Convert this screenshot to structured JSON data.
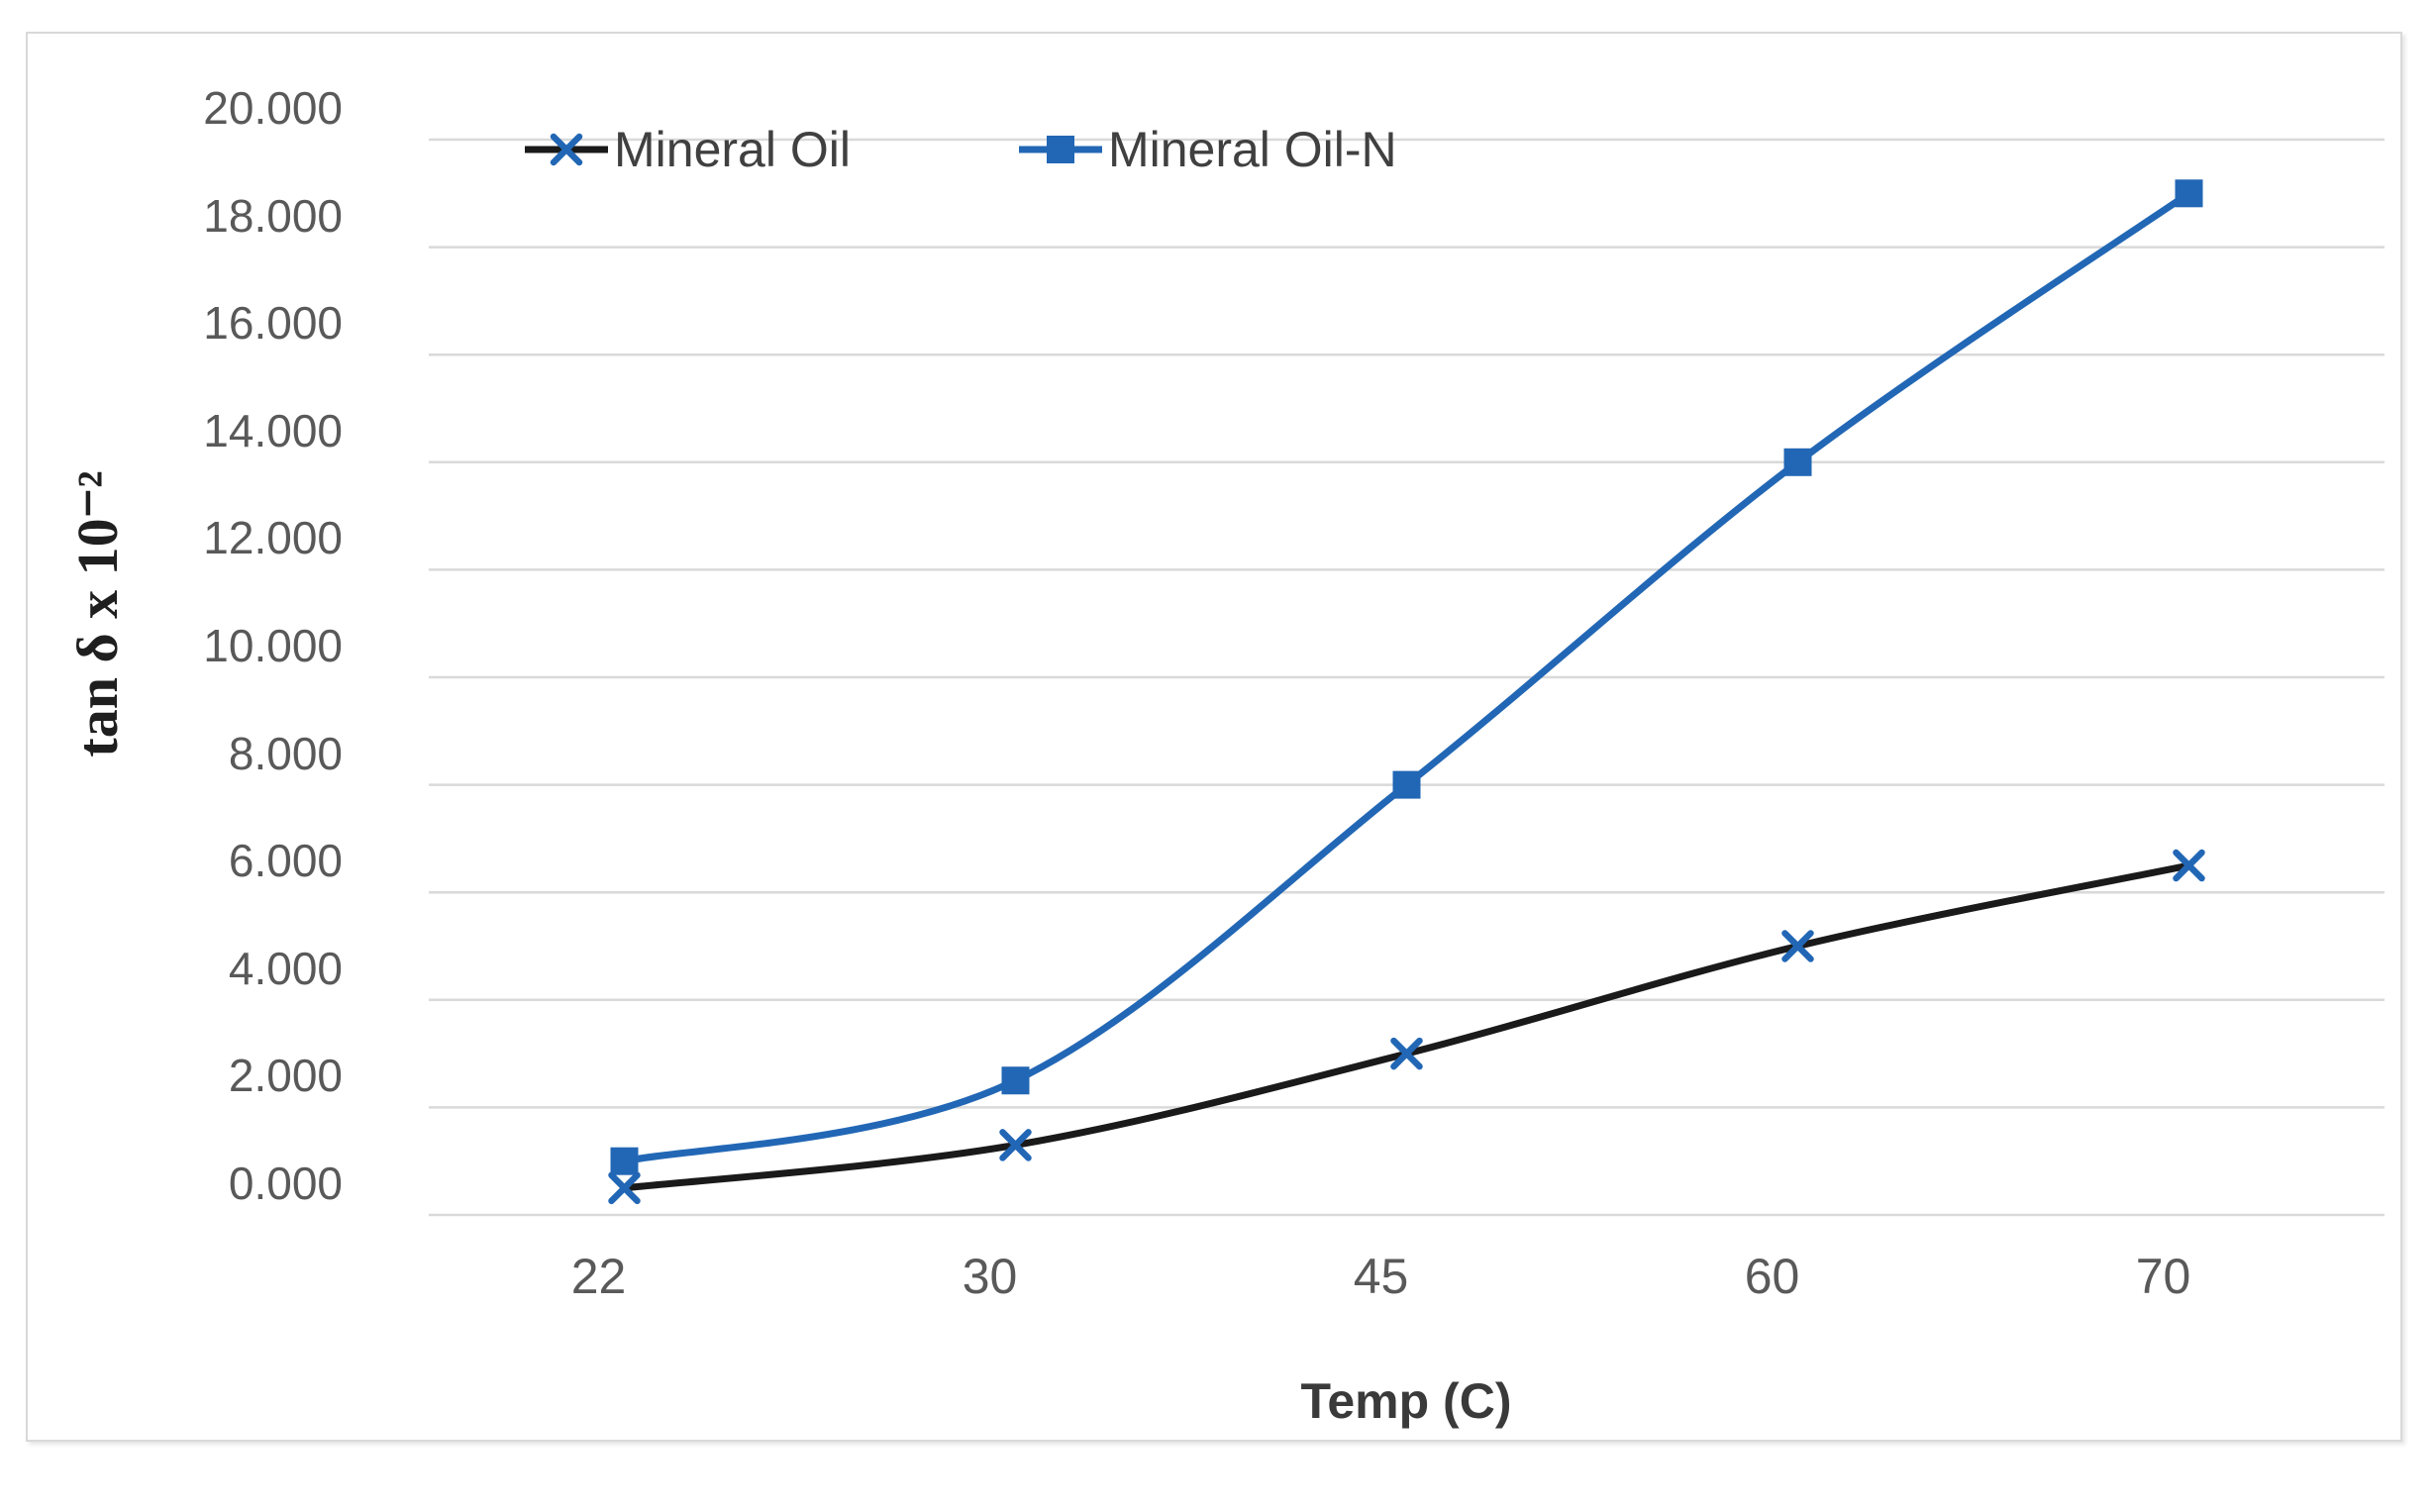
{
  "chart_data": {
    "type": "line",
    "categories": [
      "22",
      "30",
      "45",
      "60",
      "70"
    ],
    "series": [
      {
        "name": "Mineral Oil",
        "values": [
          0.5,
          1.3,
          3.0,
          5.0,
          6.5
        ],
        "line_color": "#1a1a1a",
        "marker": "x",
        "marker_color": "#2267b5"
      },
      {
        "name": "Mineral Oil-N",
        "values": [
          1.0,
          2.5,
          8.0,
          14.0,
          19.0
        ],
        "line_color": "#2267b5",
        "marker": "square",
        "marker_color": "#2267b5"
      }
    ],
    "title": "",
    "xlabel": "Temp (C)",
    "ylabel": "tan δ x 10⁻²",
    "ylim": [
      0,
      20
    ],
    "y_tick_step": 2,
    "y_tick_labels": [
      "0.000",
      "2.000",
      "4.000",
      "6.000",
      "8.000",
      "10.000",
      "12.000",
      "14.000",
      "16.000",
      "18.000",
      "20.000"
    ],
    "grid": "horizontal",
    "gridline_color": "#d9d9d9",
    "frame_border_color": "#d9d9d9",
    "tick_label_color": "#595959",
    "legend_text_color": "#404040",
    "legend_position": "top",
    "line_style": "smooth"
  }
}
